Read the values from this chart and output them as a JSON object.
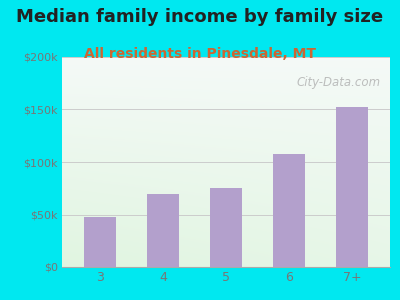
{
  "title": "Median family income by family size",
  "subtitle": "All residents in Pinesdale, MT",
  "categories": [
    "3",
    "4",
    "5",
    "6",
    "7+"
  ],
  "values": [
    48000,
    70000,
    75000,
    108000,
    152000
  ],
  "bar_color": "#b3a0cc",
  "title_fontsize": 13,
  "subtitle_fontsize": 10,
  "subtitle_color": "#cc6633",
  "title_color": "#222222",
  "outer_bg_color": "#00e8f0",
  "ylim": [
    0,
    200000
  ],
  "yticks": [
    0,
    50000,
    100000,
    150000,
    200000
  ],
  "ytick_labels": [
    "$0",
    "$50k",
    "$100k",
    "$150k",
    "$200k"
  ],
  "grid_color": "#cccccc",
  "tick_color": "#777777",
  "watermark": "City-Data.com"
}
